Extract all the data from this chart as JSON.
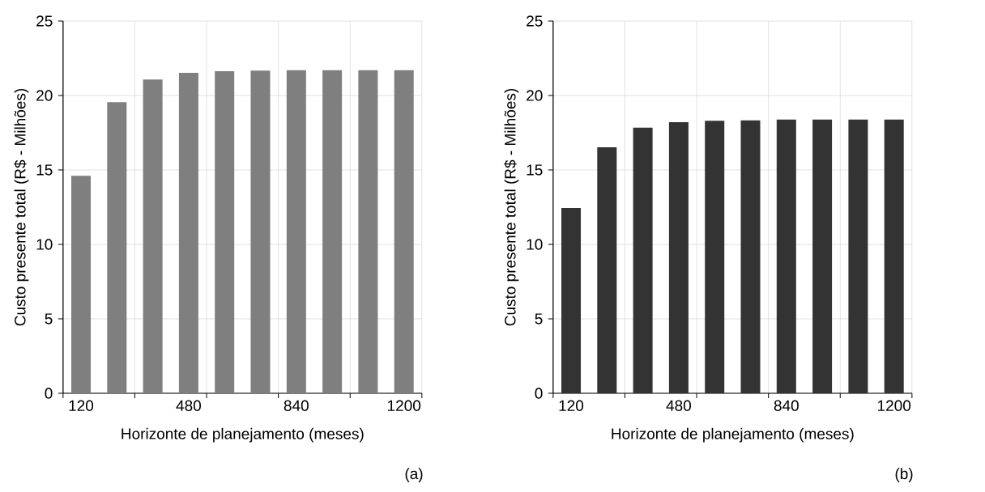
{
  "chart_data": [
    {
      "type": "bar",
      "categories": [
        "120",
        null,
        null,
        "480",
        null,
        null,
        "840",
        null,
        null,
        "1200"
      ],
      "values": [
        14.6,
        19.55,
        21.07,
        21.52,
        21.63,
        21.67,
        21.7,
        21.7,
        21.7,
        21.7
      ],
      "color": "#7f7f7f",
      "ylim": [
        0,
        25
      ],
      "yticks": [
        0,
        5,
        10,
        15,
        20,
        25
      ],
      "grid": true,
      "xlabel": "Horizonte de planejamento (meses)",
      "ylabel": "Custo presente total (R$ - Milhões)",
      "annotations": [
        "(a)"
      ]
    },
    {
      "type": "bar",
      "categories": [
        "120",
        null,
        null,
        "480",
        null,
        null,
        "840",
        null,
        null,
        "1200"
      ],
      "values": [
        12.45,
        16.52,
        17.84,
        18.2,
        18.3,
        18.33,
        18.38,
        18.38,
        18.38,
        18.38
      ],
      "color": "#333333",
      "ylim": [
        0,
        25
      ],
      "yticks": [
        0,
        5,
        10,
        15,
        20,
        25
      ],
      "grid": true,
      "xlabel": "Horizonte de planejamento (meses)",
      "ylabel": "Custo presente total (R$ - Milhões)",
      "annotations": [
        "(b)"
      ]
    }
  ]
}
